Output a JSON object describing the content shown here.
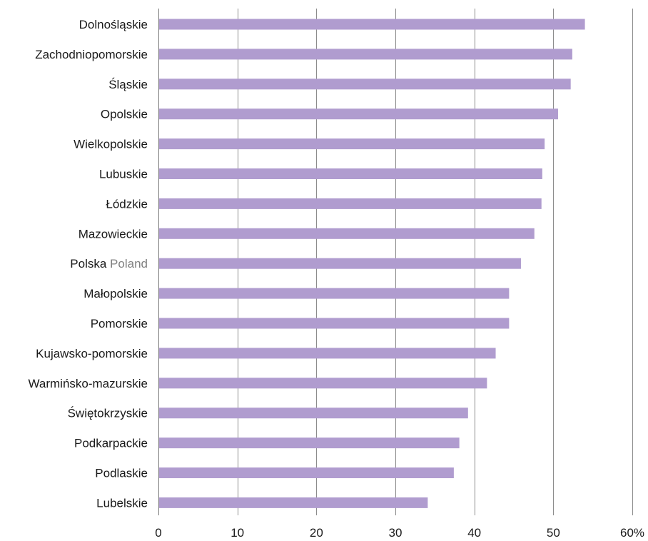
{
  "chart_data": {
    "type": "bar",
    "orientation": "horizontal",
    "categories": [
      "Dolnośląskie",
      "Zachodniopomorskie",
      "Śląskie",
      "Opolskie",
      "Wielkopolskie",
      "Lubuskie",
      "Łódzkie",
      "Mazowieckie",
      "Polska",
      "Małopolskie",
      "Pomorskie",
      "Kujawsko-pomorskie",
      "Warmińsko-mazurskie",
      "Świętokrzyskie",
      "Podkarpackie",
      "Podlaskie",
      "Lubelskie"
    ],
    "category_translations": [
      "",
      "",
      "",
      "",
      "",
      "",
      "",
      "",
      "Poland",
      "",
      "",
      "",
      "",
      "",
      "",
      "",
      ""
    ],
    "values": [
      54.0,
      52.4,
      52.2,
      50.6,
      48.9,
      48.6,
      48.5,
      47.6,
      45.9,
      44.4,
      44.4,
      42.7,
      41.6,
      39.2,
      38.1,
      37.4,
      34.1
    ],
    "xlim": [
      0,
      60
    ],
    "xticks": [
      0,
      10,
      20,
      30,
      40,
      50,
      60
    ],
    "xtick_labels": [
      "0",
      "10",
      "20",
      "30",
      "40",
      "50",
      "60%"
    ],
    "grid": true,
    "bar_color": "#b09ccf",
    "grid_color": "#8c8c8c",
    "translation_color": "#808080",
    "title": "",
    "xlabel": "",
    "ylabel": ""
  }
}
